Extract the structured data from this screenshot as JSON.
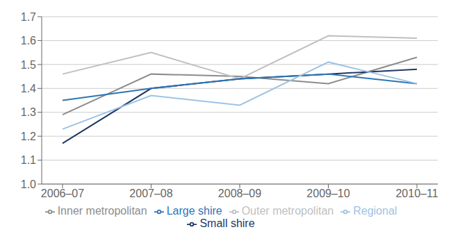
{
  "chart_data": {
    "type": "line",
    "categories": [
      "2006–07",
      "2007–08",
      "2008–09",
      "2009–10",
      "2010–11"
    ],
    "series": [
      {
        "name": "Inner metropolitan",
        "color": "#8c8c8c",
        "values": [
          1.29,
          1.46,
          1.45,
          1.42,
          1.53
        ]
      },
      {
        "name": "Outer metropolitan",
        "color": "#bfbfbf",
        "values": [
          1.46,
          1.55,
          1.44,
          1.62,
          1.61
        ]
      },
      {
        "name": "Small shire",
        "color": "#1f3864",
        "values": [
          1.17,
          1.4,
          1.44,
          1.46,
          1.48
        ]
      },
      {
        "name": "Large shire",
        "color": "#2e75b6",
        "values": [
          1.35,
          1.4,
          1.44,
          1.46,
          1.42
        ]
      },
      {
        "name": "Regional",
        "color": "#9dc3e6",
        "values": [
          1.23,
          1.37,
          1.33,
          1.51,
          1.42
        ]
      }
    ],
    "ylim": [
      1.0,
      1.7
    ],
    "yticks": [
      {
        "value": 1,
        "label": "1.0"
      },
      1.1,
      1.2,
      1.3,
      1.4,
      1.5,
      1.6,
      1.7
    ],
    "grid": true,
    "legend": "bottom"
  }
}
